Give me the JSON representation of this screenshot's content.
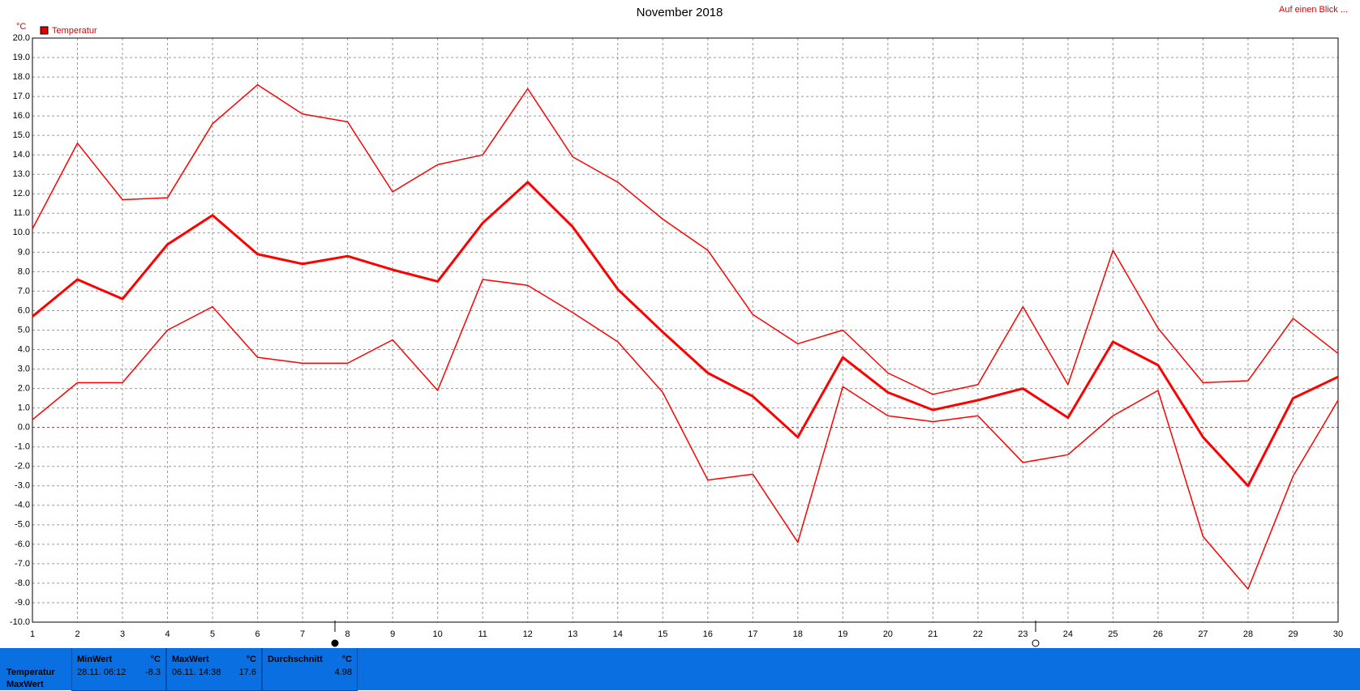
{
  "chart_data": {
    "type": "line",
    "title": "November 2018",
    "y_unit": "°C",
    "legend": "Temperatur",
    "legend_color": "#e00000",
    "link": "Auf einen Blick ...",
    "x": [
      1,
      2,
      3,
      4,
      5,
      6,
      7,
      8,
      9,
      10,
      11,
      12,
      13,
      14,
      15,
      16,
      17,
      18,
      19,
      20,
      21,
      22,
      23,
      24,
      25,
      26,
      27,
      28,
      29,
      30
    ],
    "xlim": [
      1,
      30
    ],
    "xticks": [
      1,
      2,
      3,
      4,
      5,
      6,
      7,
      8,
      9,
      10,
      11,
      12,
      13,
      14,
      15,
      16,
      17,
      18,
      19,
      20,
      21,
      22,
      23,
      24,
      25,
      26,
      27,
      28,
      29,
      30
    ],
    "ylim": [
      -10,
      20
    ],
    "yticks": [
      {
        "value": -10,
        "label": "-10.0"
      },
      {
        "value": -9,
        "label": "-9.0"
      },
      {
        "value": -8,
        "label": "-8.0"
      },
      {
        "value": -7,
        "label": "-7.0"
      },
      {
        "value": -6,
        "label": "-6.0"
      },
      {
        "value": -5,
        "label": "-5.0"
      },
      {
        "value": -4,
        "label": "-4.0"
      },
      {
        "value": -3,
        "label": "-3.0"
      },
      {
        "value": -2,
        "label": "-2.0"
      },
      {
        "value": -1,
        "label": "-1.0"
      },
      {
        "value": 0,
        "label": "0.0"
      },
      {
        "value": 1,
        "label": "1.0"
      },
      {
        "value": 2,
        "label": "2.0"
      },
      {
        "value": 3,
        "label": "3.0"
      },
      {
        "value": 4,
        "label": "4.0"
      },
      {
        "value": 5,
        "label": "5.0"
      },
      {
        "value": 6,
        "label": "6.0"
      },
      {
        "value": 7,
        "label": "7.0"
      },
      {
        "value": 8,
        "label": "8.0"
      },
      {
        "value": 9,
        "label": "9.0"
      },
      {
        "value": 10,
        "label": "10.0"
      },
      {
        "value": 11,
        "label": "11.0"
      },
      {
        "value": 12,
        "label": "12.0"
      },
      {
        "value": 13,
        "label": "13.0"
      },
      {
        "value": 14,
        "label": "14.0"
      },
      {
        "value": 15,
        "label": "15.0"
      },
      {
        "value": 16,
        "label": "16.0"
      },
      {
        "value": 17,
        "label": "17.0"
      },
      {
        "value": 18,
        "label": "18.0"
      },
      {
        "value": 19,
        "label": "19.0"
      },
      {
        "value": 20,
        "label": "20.0"
      }
    ],
    "grid": true,
    "series": [
      {
        "color": "#ff0000",
        "width": 1.5,
        "values": [
          10.2,
          14.6,
          11.7,
          11.8,
          15.6,
          17.6,
          16.1,
          15.7,
          12.1,
          13.5,
          14.0,
          17.4,
          13.9,
          12.6,
          10.7,
          9.1,
          5.8,
          4.3,
          5.0,
          2.8,
          1.7,
          2.2,
          6.2,
          2.2,
          9.1,
          5.1,
          2.3,
          2.4,
          5.6,
          3.8
        ]
      },
      {
        "color": "#ff0000",
        "width": 3,
        "values": [
          5.7,
          7.6,
          6.6,
          9.4,
          10.9,
          8.9,
          8.4,
          8.8,
          8.1,
          7.5,
          10.5,
          12.6,
          10.3,
          7.1,
          4.9,
          2.8,
          1.6,
          -0.5,
          3.6,
          1.8,
          0.9,
          1.4,
          2.0,
          0.5,
          4.4,
          3.2,
          -0.5,
          -3.0,
          1.5,
          2.6
        ]
      },
      {
        "color": "#ff0000",
        "width": 1.5,
        "values": [
          0.4,
          2.3,
          2.3,
          5.0,
          6.2,
          3.6,
          3.3,
          3.3,
          4.5,
          1.9,
          7.6,
          7.3,
          5.9,
          4.4,
          1.8,
          -2.7,
          -2.4,
          -5.9,
          2.1,
          0.6,
          0.3,
          0.6,
          -1.8,
          -1.4,
          0.6,
          1.9,
          -5.6,
          -8.3,
          -2.5,
          1.4
        ]
      }
    ]
  },
  "summary": {
    "row_label": "Temperatur",
    "row_label2": "MaxWert",
    "boxes": [
      {
        "title": "MinWert",
        "unit": "°C",
        "time": "28.11.  06:12",
        "value": -8.3
      },
      {
        "title": "MaxWert",
        "unit": "°C",
        "time": "06.11.  14:38",
        "value": 17.6
      },
      {
        "title": "Durchschnitt",
        "unit": "°C",
        "value": 4.98
      }
    ]
  }
}
